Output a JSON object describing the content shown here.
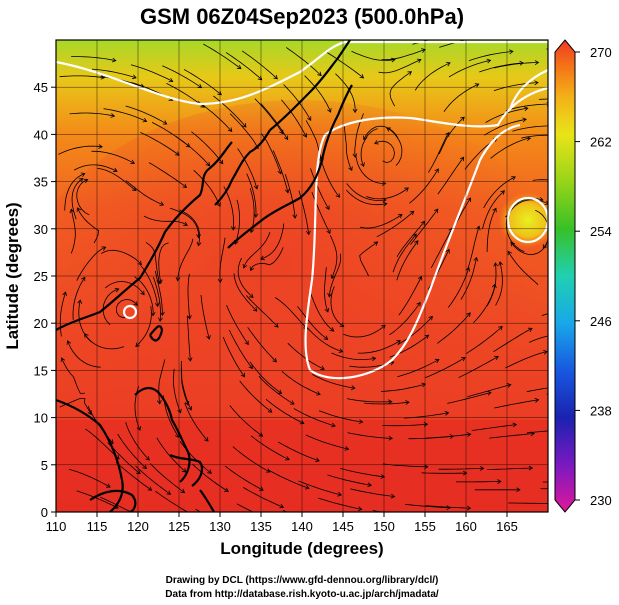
{
  "title": "GSM 06Z04Sep2023 (500.0hPa)",
  "xlabel": "Longitude (degrees)",
  "ylabel": "Latitude  (degrees)",
  "credits": [
    "Drawing by DCL (https://www.gfd-dennou.org/library/dcl/)",
    "Data from http://database.rish.kyoto-u.ac.jp/arch/jmadata/"
  ],
  "map_data": {
    "type": "contour-streamline-map",
    "lon_range": [
      110,
      170
    ],
    "lat_range": [
      0,
      50
    ],
    "x_ticks": [
      "110",
      "115",
      "120",
      "125",
      "130",
      "135",
      "140",
      "145",
      "150",
      "155",
      "160",
      "165"
    ],
    "x_tick_values": [
      110,
      115,
      120,
      125,
      130,
      135,
      140,
      145,
      150,
      155,
      160,
      165
    ],
    "y_ticks": [
      "0",
      "5",
      "10",
      "15",
      "20",
      "25",
      "30",
      "35",
      "40",
      "45"
    ],
    "y_tick_values": [
      0,
      5,
      10,
      15,
      20,
      25,
      30,
      35,
      40,
      45
    ],
    "grid": true,
    "field": "temperature",
    "colorbar": {
      "labels": [
        "270",
        "262",
        "254",
        "246",
        "238",
        "230"
      ],
      "values": [
        270,
        262,
        254,
        246,
        238,
        230
      ],
      "range": [
        230,
        270
      ],
      "position": "right",
      "colors": [
        "#e0189a",
        "#7a19c0",
        "#1a22b0",
        "#1858e0",
        "#18a8e8",
        "#20d0b0",
        "#38c028",
        "#98d418",
        "#e8e418",
        "#f4b018",
        "#f46e18",
        "#ee3a24"
      ]
    },
    "contour_color": "#ffffff",
    "streamline_color": "#000000",
    "land_color": "#000000",
    "background_colors": {
      "warm": "#ee3a24",
      "mid": "#f46e18",
      "cool": "#98d418"
    }
  }
}
